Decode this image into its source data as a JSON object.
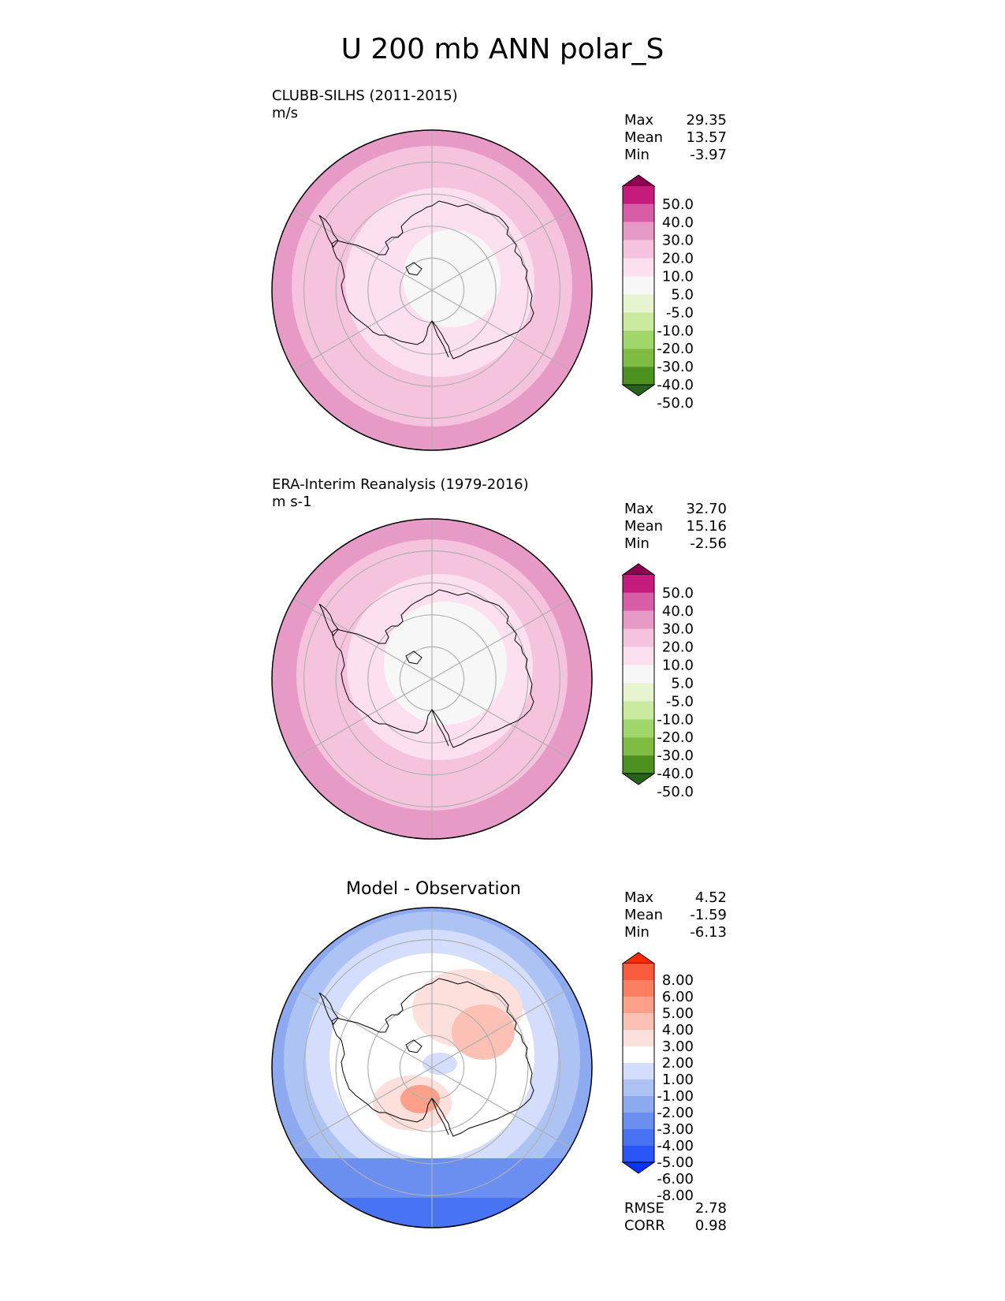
{
  "title": "U 200 mb ANN polar_S",
  "colors": {
    "pink": [
      "#276419",
      "#4d9221",
      "#7fbc41",
      "#a1d76a",
      "#c9ea9f",
      "#e6f5d0",
      "#f7f7f7",
      "#fde0ef",
      "#f5c3de",
      "#e89ac6",
      "#d75ea6",
      "#c51b7d",
      "#8e0152"
    ],
    "diff": [
      "#0433ff",
      "#2a55f7",
      "#4873f2",
      "#6a8ff1",
      "#8daaf1",
      "#adc3f4",
      "#d4ddfb",
      "#ffffff",
      "#fde0dc",
      "#fcc0b4",
      "#fca08a",
      "#fc7f62",
      "#fa5b3d",
      "#ff2a00"
    ]
  },
  "chart_data": [
    {
      "type": "heatmap",
      "panel": "test",
      "title": "CLUBB-SILHS (2011-2015)",
      "units": "m/s",
      "stats": {
        "Max": "29.35",
        "Mean": "13.57",
        "Min": "-3.97"
      },
      "colorbar_levels": [
        "50.0",
        "40.0",
        "30.0",
        "20.0",
        "10.0",
        "5.0",
        "-5.0",
        "-10.0",
        "-20.0",
        "-30.0",
        "-40.0",
        "-50.0"
      ],
      "field_rings": [
        {
          "lat": -90,
          "level": "-5.0 to 5.0"
        },
        {
          "lat": -70,
          "level": "5.0 to 10.0"
        },
        {
          "lat": -55,
          "level": "10.0 to 20.0"
        },
        {
          "lat": -45,
          "level": "20.0 to 30.0"
        }
      ]
    },
    {
      "type": "heatmap",
      "panel": "reference",
      "title": "ERA-Interim Reanalysis (1979-2016)",
      "units": "m s-1",
      "stats": {
        "Max": "32.70",
        "Mean": "15.16",
        "Min": "-2.56"
      },
      "colorbar_levels": [
        "50.0",
        "40.0",
        "30.0",
        "20.0",
        "10.0",
        "5.0",
        "-5.0",
        "-10.0",
        "-20.0",
        "-30.0",
        "-40.0",
        "-50.0"
      ],
      "field_rings": [
        {
          "lat": -90,
          "level": "-5.0 to 5.0"
        },
        {
          "lat": -70,
          "level": "5.0 to 10.0"
        },
        {
          "lat": -60,
          "level": "10.0 to 20.0"
        },
        {
          "lat": -45,
          "level": "20.0 to 30.0"
        }
      ]
    },
    {
      "type": "heatmap",
      "panel": "difference",
      "title": "Model - Observation",
      "stats": {
        "Max": "4.52",
        "Mean": "-1.59",
        "Min": "-6.13"
      },
      "metrics": {
        "RMSE": "2.78",
        "CORR": "0.98"
      },
      "colorbar_levels": [
        "8.00",
        "6.00",
        "5.00",
        "4.00",
        "3.00",
        "2.00",
        "1.00",
        "-1.00",
        "-2.00",
        "-3.00",
        "-4.00",
        "-5.00",
        "-6.00",
        "-8.00"
      ]
    }
  ]
}
